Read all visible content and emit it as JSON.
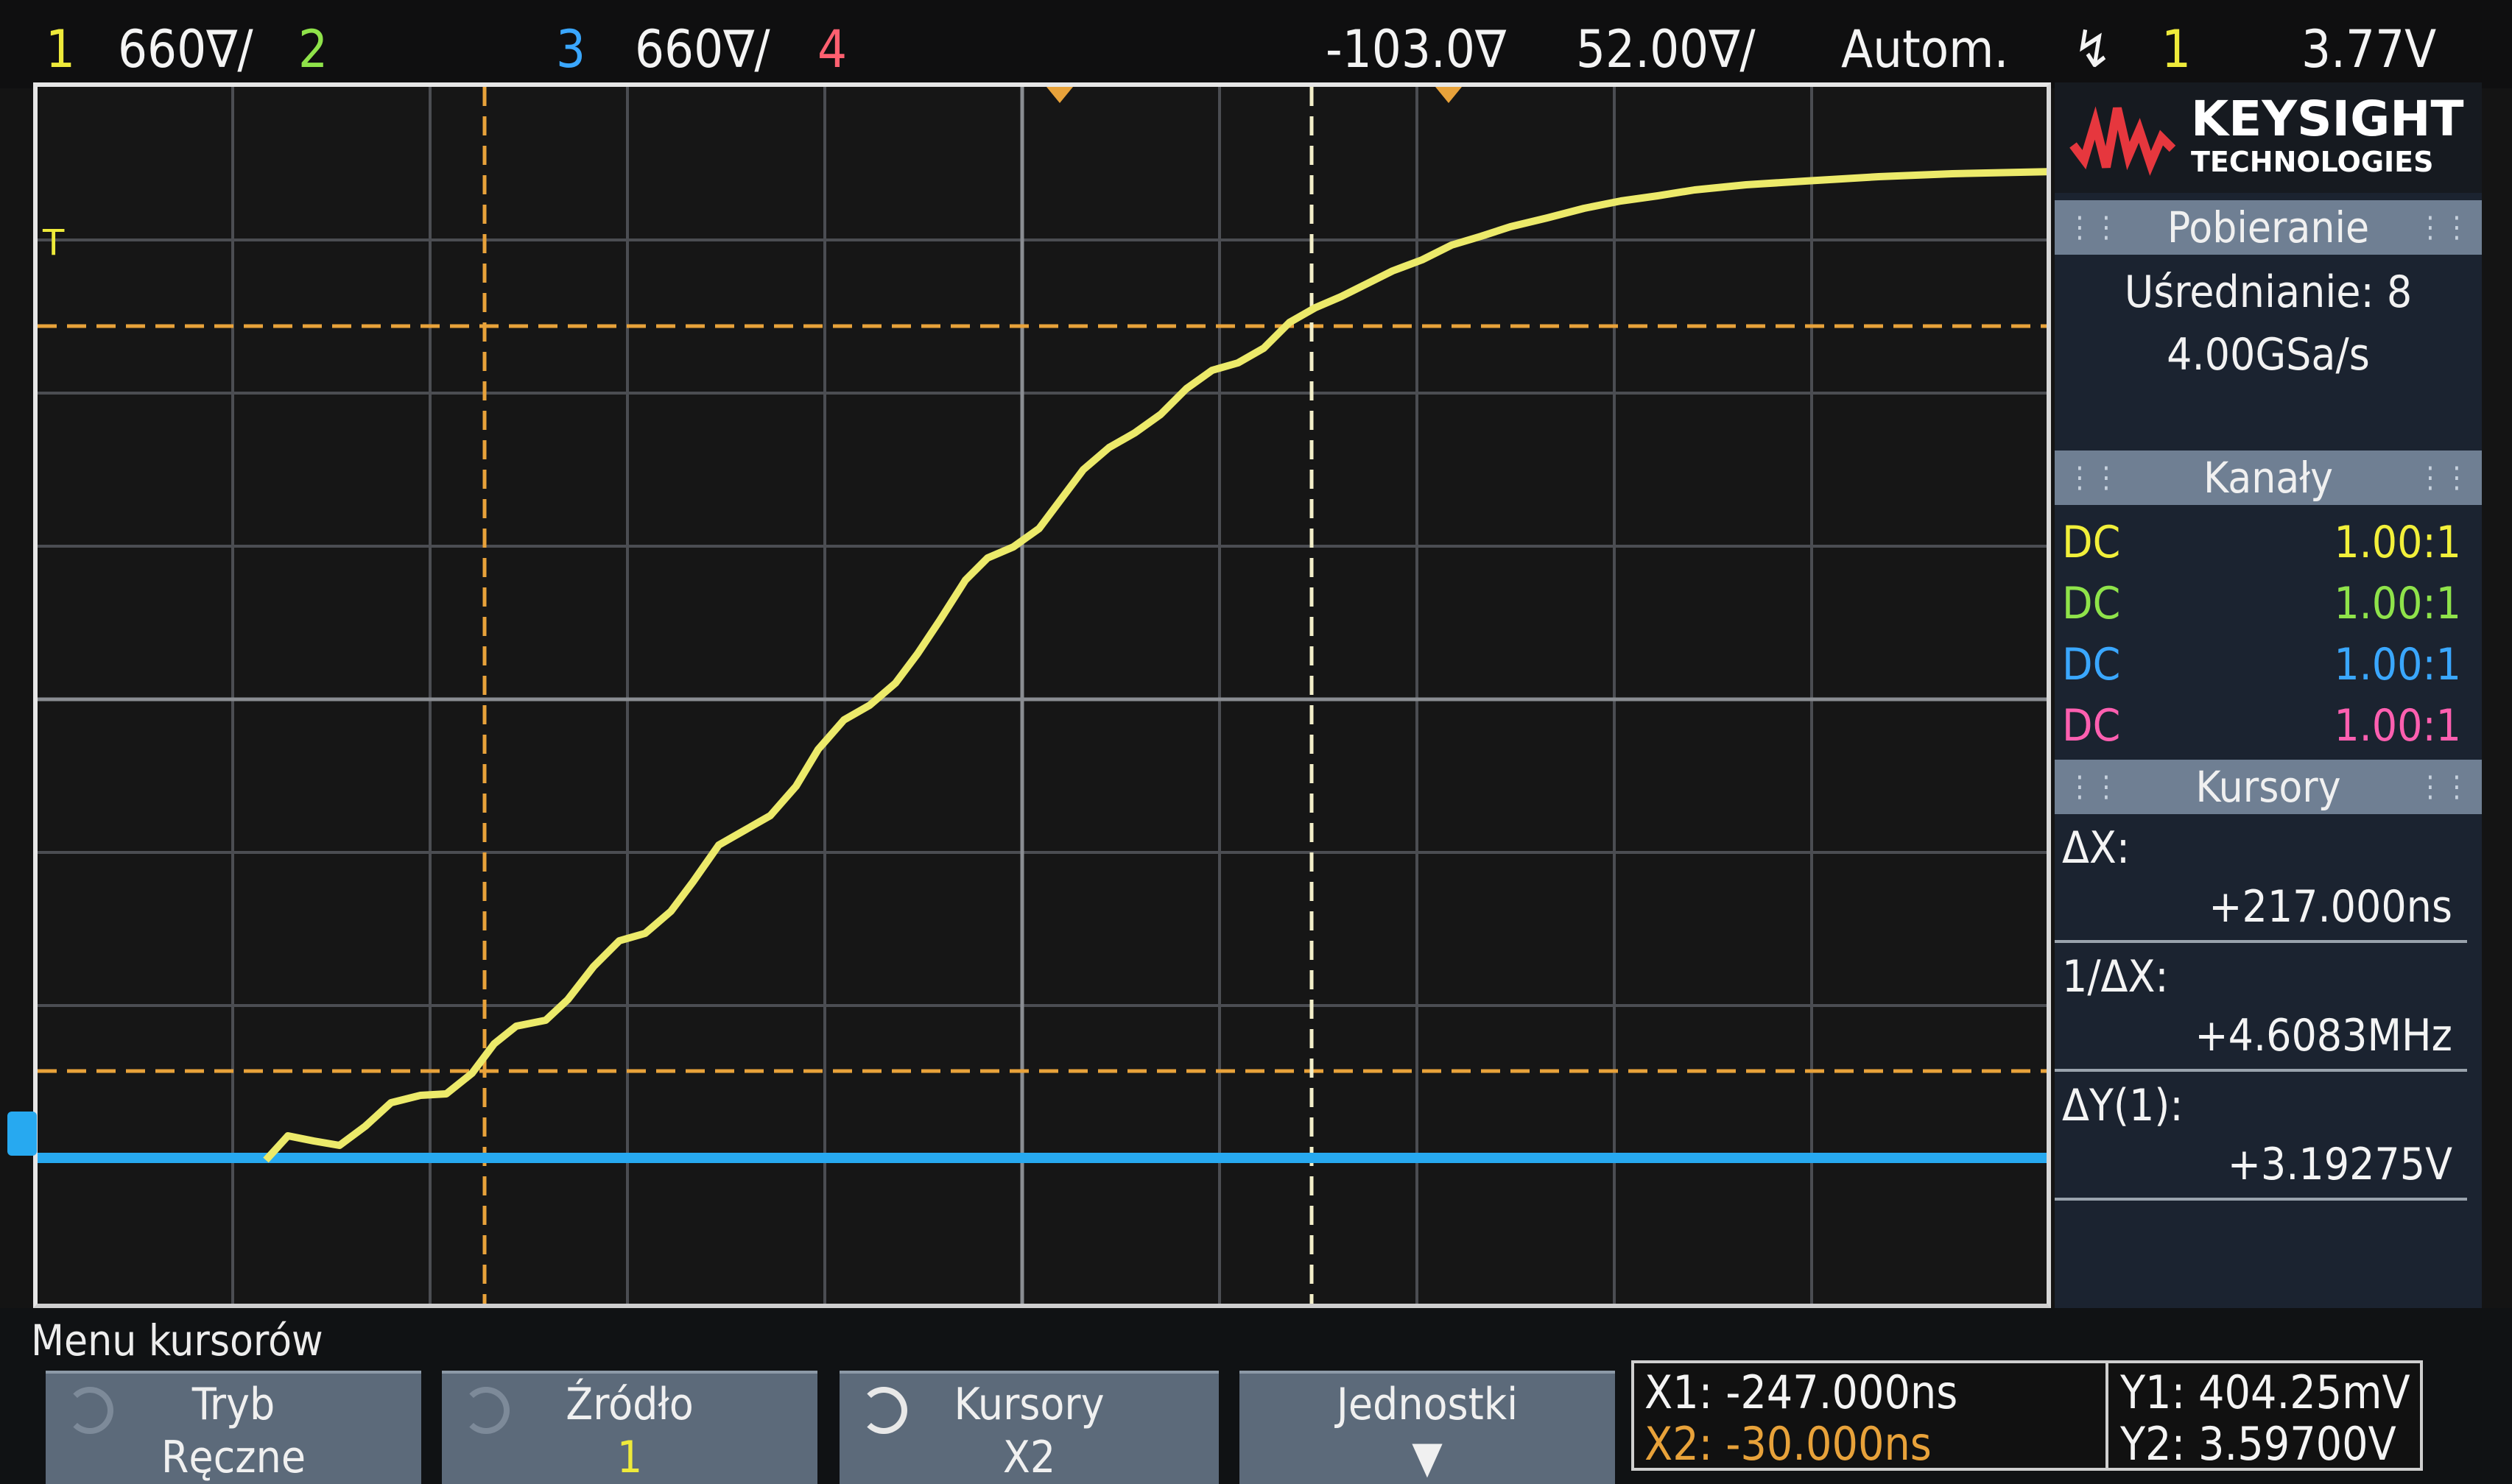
{
  "top_bar": {
    "ch1_num": "1",
    "ch1_scale": "660∇/",
    "ch2_num": "2",
    "ch3_num": "3",
    "ch3_scale": "660∇/",
    "ch4_num": "4",
    "h_position": "-103.0∇",
    "time_scale": "52.00∇/",
    "trigger_mode": "Autom.",
    "trigger_icon": "trigger-edge-icon",
    "trigger_source": "1",
    "trigger_level": "3.77V"
  },
  "side_panel": {
    "brand": "KEYSIGHT",
    "brand_sub": "TECHNOLOGIES",
    "acq_header": "Pobieranie",
    "acq_mode": "Uśrednianie: 8",
    "sample_rate": "4.00GSa/s",
    "channels_header": "Kanały",
    "channels": [
      {
        "coupling": "DC",
        "probe": "1.00:1",
        "color": "#f2f03a"
      },
      {
        "coupling": "DC",
        "probe": "1.00:1",
        "color": "#8fe34a"
      },
      {
        "coupling": "DC",
        "probe": "1.00:1",
        "color": "#3aa7ff"
      },
      {
        "coupling": "DC",
        "probe": "1.00:1",
        "color": "#ff5fb0"
      }
    ],
    "cursors_header": "Kursory",
    "dx_label": "ΔX:",
    "dx_value": "+217.000ns",
    "inv_dx_label": "1/ΔX:",
    "inv_dx_value": "+4.6083MHz",
    "dy_label": "ΔY(1):",
    "dy_value": "+3.19275V"
  },
  "menu": {
    "title": "Menu kursorów",
    "softkeys": [
      {
        "line1": "Tryb",
        "line2": "Ręczne"
      },
      {
        "line1": "Źródło",
        "line2": "1"
      },
      {
        "line1": "Kursory",
        "line2": "X2"
      },
      {
        "line1": "Jednostki",
        "line2": ""
      }
    ]
  },
  "readout": {
    "x1": "X1: -247.000ns",
    "x2": "X2: -30.000ns",
    "y1": "Y1: 404.25mV",
    "y2": "Y2: 3.59700V"
  },
  "trace": {
    "ch1_color": "#ecea6a",
    "ch3_color": "#27a9f0",
    "cursor_color": "#e8a23a",
    "active_cursor_color": "#f3efc9"
  }
}
